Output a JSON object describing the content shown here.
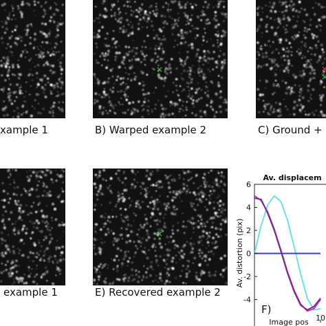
{
  "panels": [
    {
      "caption": "xample 1"
    },
    {
      "caption": "B) Warped example 2"
    },
    {
      "caption": "C) Ground + "
    },
    {
      "caption": "example 1"
    },
    {
      "caption": "E) Recovered example 2"
    }
  ],
  "chart_data": {
    "type": "line",
    "title": "Av. displacem",
    "x_label": "Image pos",
    "y_label": "Av. distortion (pix)",
    "annotation": "F)",
    "x": [
      0,
      1,
      2,
      3,
      4,
      5,
      6,
      7,
      8,
      9,
      10
    ],
    "series": [
      {
        "color": "#6fe3dd",
        "values": [
          0,
          2.4,
          4.2,
          5.0,
          4.5,
          2.9,
          0.6,
          -1.8,
          -3.9,
          -4.9,
          -4.8
        ]
      },
      {
        "color": "#cc33aa",
        "values": [
          5.0,
          4.6,
          3.6,
          2.1,
          0.3,
          -1.6,
          -3.2,
          -4.4,
          -5.0,
          -4.8,
          -4.0
        ]
      },
      {
        "color": "#7a2a8a",
        "values": [
          4.8,
          4.7,
          3.5,
          2.0,
          0.2,
          -1.7,
          -3.3,
          -4.5,
          -4.9,
          -4.6,
          -3.9
        ]
      },
      {
        "color": "#3b3bd0",
        "values": [
          0,
          0,
          0,
          0,
          0,
          0,
          0,
          0,
          0,
          0,
          0
        ]
      }
    ],
    "xlim": [
      0,
      12.5
    ],
    "ylim": [
      -6,
      6
    ],
    "xticks": [
      10
    ],
    "yticks": [
      -4,
      -2,
      0,
      2,
      4,
      6
    ]
  }
}
